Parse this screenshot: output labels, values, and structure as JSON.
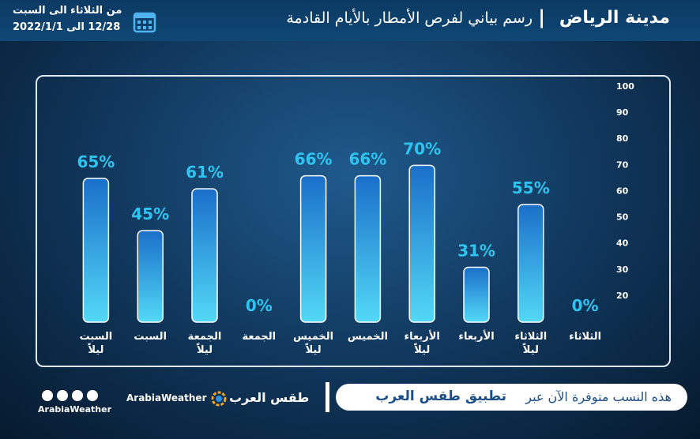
{
  "header": {
    "city": "مدينة الرياض",
    "title": "رسم بياني لفرص الأمطار بالأيام القادمة",
    "range_days": "من الثلاثاء الى السبت",
    "range_dates": "12/28 الى 2022/1/1"
  },
  "chart_data": {
    "type": "bar",
    "categories": [
      "السبت ليلاً",
      "السبت",
      "الجمعة ليلاً",
      "الجمعة",
      "الخميس ليلاً",
      "الخميس",
      "الأربعاء ليلاً",
      "الأربعاء",
      "الثلاثاء ليلاً",
      "الثلاثاء"
    ],
    "values": [
      65,
      45,
      61,
      0,
      66,
      66,
      70,
      31,
      55,
      0
    ],
    "value_labels": [
      "65%",
      "45%",
      "61%",
      "0%",
      "66%",
      "66%",
      "70%",
      "31%",
      "55%",
      "0%"
    ],
    "color": "#1a6fc9",
    "ylim": [
      10,
      100
    ],
    "yticks": [
      20,
      30,
      40,
      50,
      60,
      70,
      80,
      90,
      100
    ],
    "y_axis_side": "right"
  },
  "footer": {
    "note": "هذه النسب متوفرة الآن عبر",
    "app": "تطبيق طقس العرب",
    "brand_ar": "طقس العرب",
    "brand_en": "ArabiaWeather",
    "social_handle": "ArabiaWeather"
  }
}
